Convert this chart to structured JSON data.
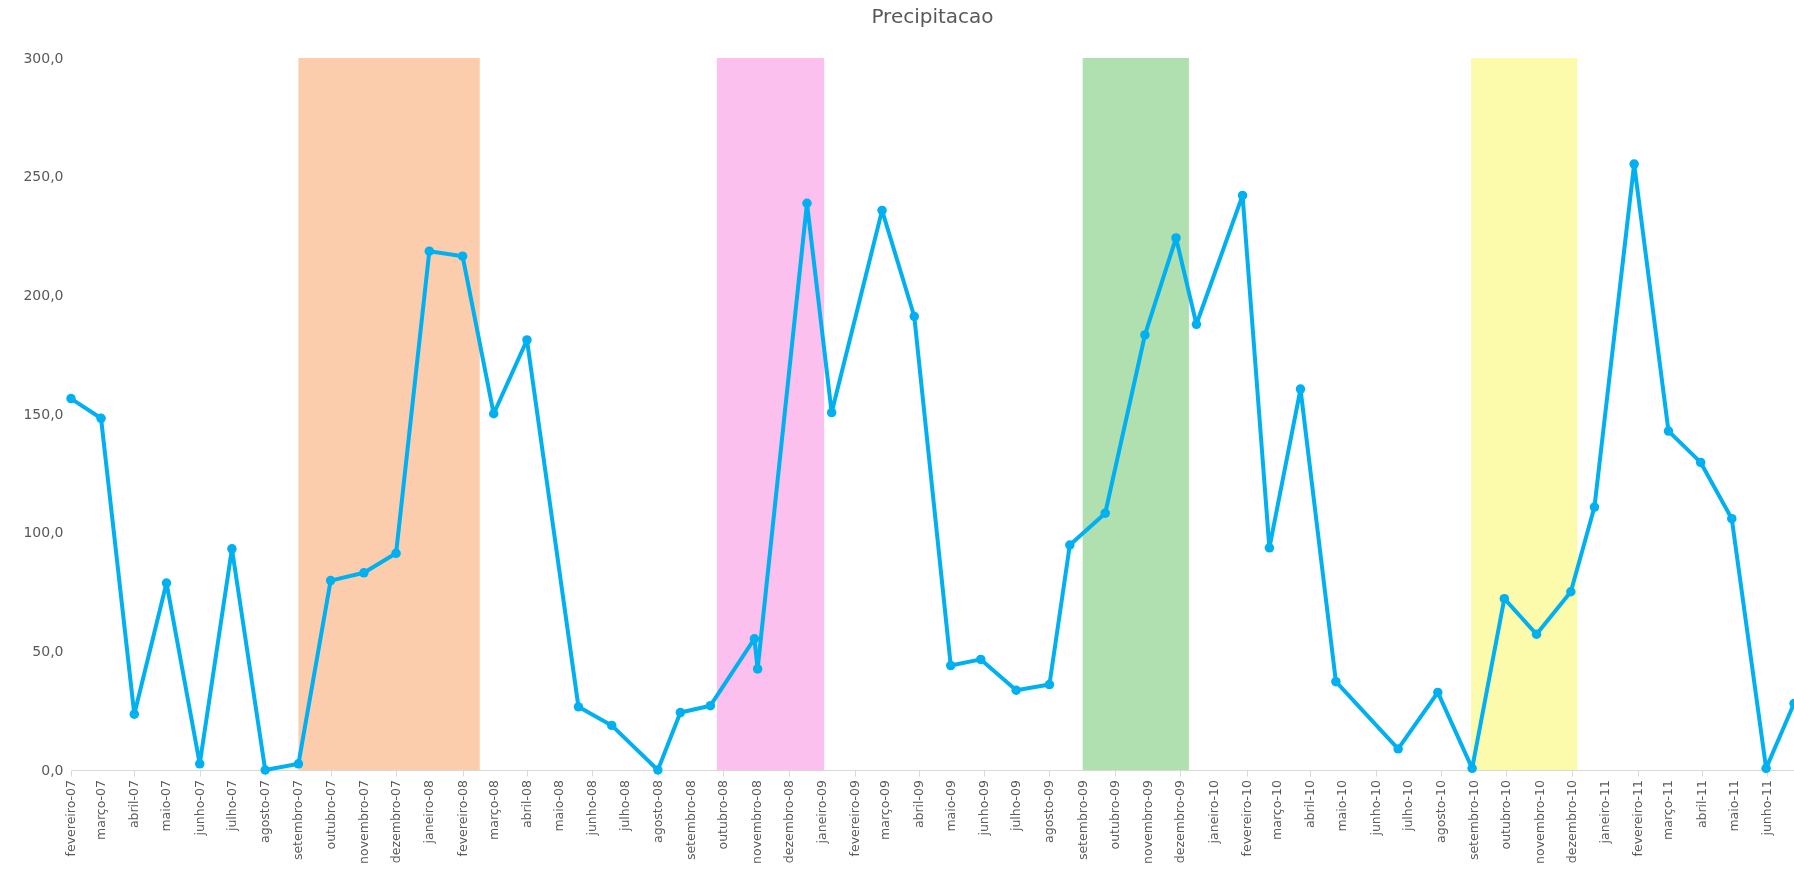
{
  "chart_data": {
    "type": "line",
    "title": "Precipitacao",
    "x": [
      "2007-02-01",
      "2007-03-01",
      "2007-04-01",
      "2007-05-01",
      "2007-06-01",
      "2007-07-01",
      "2007-08-01",
      "2007-09-01",
      "2007-10-01",
      "2007-11-01",
      "2007-12-01",
      "2008-01-01",
      "2008-02-01",
      "2008-03-01",
      "2008-04-01",
      "2008-05-19",
      "2008-06-19",
      "2008-08-01",
      "2008-08-22",
      "2008-09-19",
      "2008-10-30",
      "2008-11-02",
      "2008-12-18",
      "2009-01-10",
      "2009-02-26",
      "2009-03-28",
      "2009-05-01",
      "2009-05-29",
      "2009-07-01",
      "2009-08-01",
      "2009-08-20",
      "2009-09-22",
      "2009-10-29",
      "2009-11-27",
      "2009-12-16",
      "2010-01-28",
      "2010-02-22",
      "2010-03-23",
      "2010-04-25",
      "2010-06-22",
      "2010-07-29",
      "2010-08-30",
      "2010-09-29",
      "2010-10-29",
      "2010-11-30",
      "2010-12-22",
      "2011-01-28",
      "2011-03-01",
      "2011-03-31",
      "2011-04-29",
      "2011-05-31",
      "2011-06-26"
    ],
    "series": [
      {
        "color": "#00b0f0",
        "values": [
          156.5,
          148.2,
          23.5,
          78.8,
          2.6,
          93.2,
          0,
          2.6,
          79.8,
          83.1,
          91.3,
          218.6,
          216.5,
          150.1,
          181.2,
          26.6,
          18.8,
          0,
          24.2,
          27.1,
          55.3,
          42.6,
          238.8,
          150.6,
          235.8,
          191.1,
          44,
          46.6,
          33.6,
          36,
          94.8,
          108.2,
          183.3,
          224.2,
          187.8,
          242.1,
          93.6,
          160.5,
          37.2,
          8.9,
          32.7,
          0.7,
          72.2,
          57.2,
          75.1,
          110.8,
          255.3,
          142.8,
          129.6,
          105.9,
          0.7,
          28.0
        ]
      }
    ],
    "marker": "circle",
    "line_style": "solid",
    "grid": false,
    "ylim": [
      0,
      300
    ],
    "yticks": [
      {
        "value": 0,
        "label": "0,0"
      },
      {
        "value": 50,
        "label": "50,0"
      },
      {
        "value": 100,
        "label": "100,0"
      },
      {
        "value": 150,
        "label": "150,0"
      },
      {
        "value": 200,
        "label": "200,0"
      },
      {
        "value": 250,
        "label": "250,0"
      },
      {
        "value": 300,
        "label": "300,0"
      }
    ],
    "xlim": [
      "2007-02-01",
      "2011-06-26"
    ],
    "xticks": [
      {
        "value": "2007-02-01",
        "label": "fevereiro-07"
      },
      {
        "value": "2007-03-01",
        "label": "março-07"
      },
      {
        "value": "2007-04-01",
        "label": "abril-07"
      },
      {
        "value": "2007-05-01",
        "label": "maio-07"
      },
      {
        "value": "2007-06-01",
        "label": "junho-07"
      },
      {
        "value": "2007-07-01",
        "label": "julho-07"
      },
      {
        "value": "2007-08-01",
        "label": "agosto-07"
      },
      {
        "value": "2007-09-01",
        "label": "setembro-07"
      },
      {
        "value": "2007-10-01",
        "label": "outubro-07"
      },
      {
        "value": "2007-11-01",
        "label": "novembro-07"
      },
      {
        "value": "2007-12-01",
        "label": "dezembro-07"
      },
      {
        "value": "2008-01-01",
        "label": "janeiro-08"
      },
      {
        "value": "2008-02-01",
        "label": "fevereiro-08"
      },
      {
        "value": "2008-03-01",
        "label": "março-08"
      },
      {
        "value": "2008-04-01",
        "label": "abril-08"
      },
      {
        "value": "2008-05-01",
        "label": "maio-08"
      },
      {
        "value": "2008-06-01",
        "label": "junho-08"
      },
      {
        "value": "2008-07-01",
        "label": "julho-08"
      },
      {
        "value": "2008-08-01",
        "label": "agosto-08"
      },
      {
        "value": "2008-09-01",
        "label": "setembro-08"
      },
      {
        "value": "2008-10-01",
        "label": "outubro-08"
      },
      {
        "value": "2008-11-01",
        "label": "novembro-08"
      },
      {
        "value": "2008-12-01",
        "label": "dezembro-08"
      },
      {
        "value": "2009-01-01",
        "label": "janeiro-09"
      },
      {
        "value": "2009-02-01",
        "label": "fevereiro-09"
      },
      {
        "value": "2009-03-01",
        "label": "março-09"
      },
      {
        "value": "2009-04-01",
        "label": "abril-09"
      },
      {
        "value": "2009-05-01",
        "label": "maio-09"
      },
      {
        "value": "2009-06-01",
        "label": "junho-09"
      },
      {
        "value": "2009-07-01",
        "label": "julho-09"
      },
      {
        "value": "2009-08-01",
        "label": "agosto-09"
      },
      {
        "value": "2009-09-01",
        "label": "setembro-09"
      },
      {
        "value": "2009-10-01",
        "label": "outubro-09"
      },
      {
        "value": "2009-11-01",
        "label": "novembro-09"
      },
      {
        "value": "2009-12-01",
        "label": "dezembro-09"
      },
      {
        "value": "2010-01-01",
        "label": "janeiro-10"
      },
      {
        "value": "2010-02-01",
        "label": "fevereiro-10"
      },
      {
        "value": "2010-03-01",
        "label": "março-10"
      },
      {
        "value": "2010-04-01",
        "label": "abril-10"
      },
      {
        "value": "2010-05-01",
        "label": "maio-10"
      },
      {
        "value": "2010-06-01",
        "label": "junho-10"
      },
      {
        "value": "2010-07-01",
        "label": "julho-10"
      },
      {
        "value": "2010-08-01",
        "label": "agosto-10"
      },
      {
        "value": "2010-09-01",
        "label": "setembro-10"
      },
      {
        "value": "2010-10-01",
        "label": "outubro-10"
      },
      {
        "value": "2010-11-01",
        "label": "novembro-10"
      },
      {
        "value": "2010-12-01",
        "label": "dezembro-10"
      },
      {
        "value": "2011-01-01",
        "label": "janeiro-11"
      },
      {
        "value": "2011-02-01",
        "label": "fevereiro-11"
      },
      {
        "value": "2011-03-01",
        "label": "março-11"
      },
      {
        "value": "2011-04-01",
        "label": "abril-11"
      },
      {
        "value": "2011-05-01",
        "label": "maio-11"
      },
      {
        "value": "2011-06-01",
        "label": "junho-11"
      }
    ],
    "bands": [
      {
        "axis": "x",
        "from": "2007-09-01",
        "to": "2008-02-17",
        "color": "#f8a468"
      },
      {
        "axis": "x",
        "from": "2008-09-25",
        "to": "2009-01-03",
        "color": "#f98de0"
      },
      {
        "axis": "x",
        "from": "2009-09-01",
        "to": "2009-12-09",
        "color": "#6fc46f"
      },
      {
        "axis": "x",
        "from": "2010-08-29",
        "to": "2010-12-06",
        "color": "#f7f766"
      }
    ]
  }
}
